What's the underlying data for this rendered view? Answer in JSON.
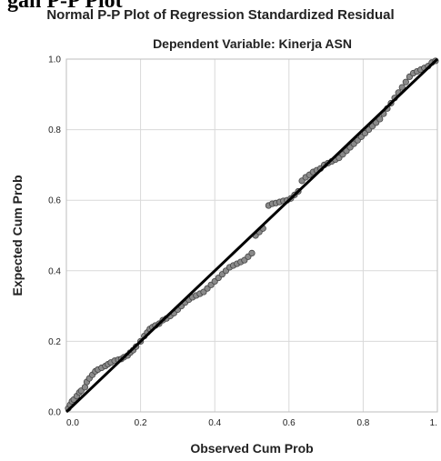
{
  "page": {
    "clipped_heading": "gan P-P Plot"
  },
  "chart_data": {
    "type": "scatter",
    "title": "Normal P-P Plot of Regression Standardized Residual",
    "subtitle": "Dependent Variable: Kinerja ASN",
    "xlabel": "Observed Cum Prob",
    "ylabel": "Expected Cum Prob",
    "xlim": [
      0,
      1
    ],
    "ylim": [
      0,
      1
    ],
    "grid": true,
    "x_ticks": [
      "0.0",
      "0.2",
      "0.4",
      "0.6",
      "0.8",
      "1."
    ],
    "y_ticks": [
      "0.0",
      "0.2",
      "0.4",
      "0.6",
      "0.8",
      "1.0"
    ],
    "reference_line": [
      [
        0,
        0
      ],
      [
        1,
        1
      ]
    ],
    "colors": {
      "points": "#8a8a8a",
      "point_edge": "#444444",
      "line": "#000000",
      "grid": "#d9d9d9"
    },
    "points": [
      [
        0.005,
        0.01
      ],
      [
        0.01,
        0.02
      ],
      [
        0.015,
        0.03
      ],
      [
        0.02,
        0.035
      ],
      [
        0.028,
        0.045
      ],
      [
        0.035,
        0.055
      ],
      [
        0.04,
        0.06
      ],
      [
        0.05,
        0.07
      ],
      [
        0.055,
        0.085
      ],
      [
        0.062,
        0.095
      ],
      [
        0.07,
        0.105
      ],
      [
        0.078,
        0.115
      ],
      [
        0.085,
        0.12
      ],
      [
        0.095,
        0.125
      ],
      [
        0.105,
        0.13
      ],
      [
        0.112,
        0.135
      ],
      [
        0.12,
        0.14
      ],
      [
        0.13,
        0.145
      ],
      [
        0.14,
        0.148
      ],
      [
        0.148,
        0.15
      ],
      [
        0.155,
        0.155
      ],
      [
        0.165,
        0.16
      ],
      [
        0.172,
        0.168
      ],
      [
        0.18,
        0.175
      ],
      [
        0.188,
        0.185
      ],
      [
        0.2,
        0.2
      ],
      [
        0.21,
        0.215
      ],
      [
        0.218,
        0.225
      ],
      [
        0.225,
        0.235
      ],
      [
        0.232,
        0.24
      ],
      [
        0.24,
        0.245
      ],
      [
        0.25,
        0.25
      ],
      [
        0.26,
        0.26
      ],
      [
        0.27,
        0.265
      ],
      [
        0.28,
        0.272
      ],
      [
        0.29,
        0.28
      ],
      [
        0.3,
        0.29
      ],
      [
        0.31,
        0.3
      ],
      [
        0.32,
        0.31
      ],
      [
        0.33,
        0.318
      ],
      [
        0.34,
        0.325
      ],
      [
        0.35,
        0.33
      ],
      [
        0.36,
        0.335
      ],
      [
        0.37,
        0.34
      ],
      [
        0.38,
        0.35
      ],
      [
        0.39,
        0.36
      ],
      [
        0.4,
        0.37
      ],
      [
        0.41,
        0.38
      ],
      [
        0.42,
        0.39
      ],
      [
        0.43,
        0.4
      ],
      [
        0.44,
        0.41
      ],
      [
        0.45,
        0.415
      ],
      [
        0.46,
        0.42
      ],
      [
        0.47,
        0.425
      ],
      [
        0.48,
        0.43
      ],
      [
        0.49,
        0.44
      ],
      [
        0.5,
        0.45
      ],
      [
        0.51,
        0.5
      ],
      [
        0.52,
        0.51
      ],
      [
        0.53,
        0.52
      ],
      [
        0.545,
        0.585
      ],
      [
        0.555,
        0.59
      ],
      [
        0.565,
        0.592
      ],
      [
        0.575,
        0.595
      ],
      [
        0.585,
        0.598
      ],
      [
        0.595,
        0.6
      ],
      [
        0.605,
        0.605
      ],
      [
        0.615,
        0.615
      ],
      [
        0.625,
        0.625
      ],
      [
        0.635,
        0.655
      ],
      [
        0.645,
        0.665
      ],
      [
        0.655,
        0.672
      ],
      [
        0.665,
        0.68
      ],
      [
        0.675,
        0.685
      ],
      [
        0.685,
        0.69
      ],
      [
        0.695,
        0.7
      ],
      [
        0.705,
        0.705
      ],
      [
        0.715,
        0.71
      ],
      [
        0.725,
        0.715
      ],
      [
        0.735,
        0.72
      ],
      [
        0.745,
        0.73
      ],
      [
        0.755,
        0.74
      ],
      [
        0.765,
        0.75
      ],
      [
        0.775,
        0.76
      ],
      [
        0.785,
        0.77
      ],
      [
        0.795,
        0.78
      ],
      [
        0.805,
        0.79
      ],
      [
        0.815,
        0.8
      ],
      [
        0.825,
        0.81
      ],
      [
        0.835,
        0.82
      ],
      [
        0.845,
        0.83
      ],
      [
        0.855,
        0.845
      ],
      [
        0.865,
        0.86
      ],
      [
        0.875,
        0.875
      ],
      [
        0.885,
        0.89
      ],
      [
        0.895,
        0.905
      ],
      [
        0.905,
        0.92
      ],
      [
        0.915,
        0.935
      ],
      [
        0.925,
        0.95
      ],
      [
        0.935,
        0.96
      ],
      [
        0.945,
        0.965
      ],
      [
        0.955,
        0.97
      ],
      [
        0.965,
        0.975
      ],
      [
        0.975,
        0.98
      ],
      [
        0.985,
        0.99
      ],
      [
        0.995,
        0.995
      ]
    ]
  }
}
